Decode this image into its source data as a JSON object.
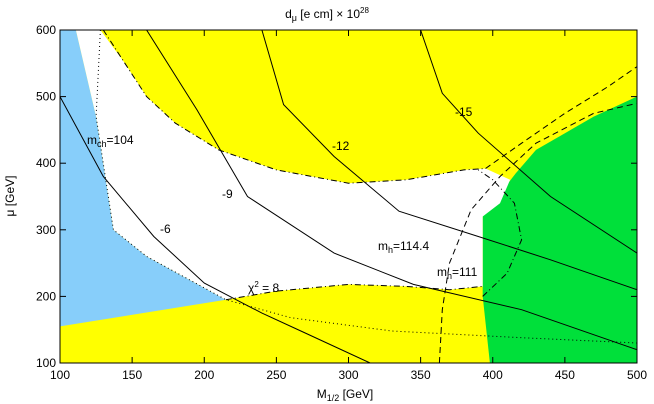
{
  "colors": {
    "excluded_blue": "#87cefa",
    "excluded_yellow": "#ffff00",
    "excluded_green": "#00e03a",
    "allowed_white": "#ffffff",
    "line": "#000000"
  },
  "chart_data": {
    "type": "area",
    "title": {
      "prefix": "d",
      "sub": "μ",
      "suffix": "  [e cm] × 10",
      "sup": "28"
    },
    "xlabel": {
      "prefix": "M",
      "sub": "1/2",
      "suffix": " [GeV]"
    },
    "ylabel": "μ [GeV]",
    "xlim": [
      100,
      500
    ],
    "ylim": [
      100,
      600
    ],
    "x_ticks": [
      100,
      150,
      200,
      250,
      300,
      350,
      400,
      450,
      500
    ],
    "y_ticks": [
      100,
      200,
      300,
      400,
      500,
      600
    ],
    "grid": false,
    "regions": [
      {
        "name": "yellow-region",
        "color": "excluded_yellow",
        "points": [
          [
            100,
            100
          ],
          [
            500,
            100
          ],
          [
            500,
            600
          ],
          [
            100,
            600
          ]
        ]
      },
      {
        "name": "blue-region",
        "color": "excluded_blue",
        "points": [
          [
            100,
            155
          ],
          [
            215,
            195
          ],
          [
            160,
            260
          ],
          [
            137,
            300
          ],
          [
            125,
            470
          ],
          [
            111,
            600
          ],
          [
            100,
            600
          ]
        ]
      },
      {
        "name": "green-region",
        "color": "excluded_green",
        "points": [
          [
            398,
            100
          ],
          [
            500,
            100
          ],
          [
            500,
            500
          ],
          [
            470,
            470
          ],
          [
            450,
            445
          ],
          [
            430,
            420
          ],
          [
            416,
            385
          ],
          [
            400,
            340
          ],
          [
            393,
            320
          ],
          [
            393,
            200
          ],
          [
            398,
            100
          ]
        ]
      },
      {
        "name": "white-region",
        "color": "allowed_white",
        "points": [
          [
            111,
            600
          ],
          [
            128,
            600
          ],
          [
            145,
            550
          ],
          [
            160,
            500
          ],
          [
            180,
            460
          ],
          [
            210,
            420
          ],
          [
            250,
            390
          ],
          [
            300,
            370
          ],
          [
            340,
            375
          ],
          [
            380,
            390
          ],
          [
            395,
            392
          ],
          [
            412,
            375
          ],
          [
            405,
            340
          ],
          [
            393,
            320
          ],
          [
            393,
            215
          ],
          [
            370,
            210
          ],
          [
            340,
            215
          ],
          [
            300,
            218
          ],
          [
            250,
            208
          ],
          [
            215,
            195
          ],
          [
            160,
            260
          ],
          [
            137,
            300
          ],
          [
            125,
            470
          ],
          [
            111,
            600
          ]
        ]
      }
    ],
    "contours": [
      {
        "label": "-6",
        "points": [
          [
            100,
            500
          ],
          [
            130,
            380
          ],
          [
            165,
            290
          ],
          [
            200,
            220
          ],
          [
            240,
            175
          ],
          [
            270,
            145
          ],
          [
            315,
            100
          ]
        ]
      },
      {
        "label": "-9",
        "points": [
          [
            160,
            600
          ],
          [
            195,
            480
          ],
          [
            230,
            350
          ],
          [
            290,
            265
          ],
          [
            345,
            218
          ],
          [
            420,
            180
          ],
          [
            500,
            120
          ]
        ]
      },
      {
        "label": "-12",
        "points": [
          [
            240,
            600
          ],
          [
            255,
            488
          ],
          [
            290,
            410
          ],
          [
            335,
            328
          ],
          [
            390,
            290
          ],
          [
            440,
            255
          ],
          [
            500,
            210
          ]
        ]
      },
      {
        "label": "-15",
        "points": [
          [
            350,
            600
          ],
          [
            365,
            505
          ],
          [
            390,
            445
          ],
          [
            440,
            350
          ],
          [
            500,
            265
          ]
        ]
      }
    ],
    "mh_lines": [
      {
        "label": "m_h=111",
        "style": "dashed",
        "points": [
          [
            363,
            100
          ],
          [
            365,
            180
          ],
          [
            370,
            250
          ],
          [
            385,
            330
          ],
          [
            405,
            380
          ],
          [
            430,
            430
          ],
          [
            470,
            475
          ],
          [
            500,
            490
          ]
        ]
      },
      {
        "label": "m_h=114.4",
        "style": "dashdot",
        "points": [
          [
            393,
            200
          ],
          [
            410,
            235
          ],
          [
            420,
            285
          ],
          [
            415,
            340
          ],
          [
            400,
            375
          ],
          [
            390,
            390
          ]
        ]
      },
      {
        "label": "m_ch=104",
        "style": "dotted",
        "points": [
          [
            128,
            600
          ],
          [
            125,
            470
          ],
          [
            137,
            300
          ],
          [
            160,
            260
          ],
          [
            215,
            195
          ],
          [
            260,
            168
          ],
          [
            330,
            148
          ],
          [
            420,
            138
          ],
          [
            500,
            130
          ]
        ]
      }
    ],
    "chi2_line": {
      "label": "χ²= 8",
      "style": "dashdot",
      "points": [
        [
          130,
          600
        ],
        [
          145,
          550
        ],
        [
          160,
          500
        ],
        [
          180,
          460
        ],
        [
          210,
          420
        ],
        [
          250,
          390
        ],
        [
          300,
          370
        ],
        [
          340,
          375
        ],
        [
          380,
          390
        ],
        [
          395,
          392
        ]
      ]
    },
    "chi2_lower": {
      "style": "dashdot",
      "points": [
        [
          215,
          195
        ],
        [
          250,
          208
        ],
        [
          300,
          218
        ],
        [
          340,
          215
        ],
        [
          370,
          210
        ],
        [
          393,
          215
        ]
      ]
    },
    "mh_dashed_upper": {
      "style": "dashed",
      "points": [
        [
          395,
          392
        ],
        [
          420,
          430
        ],
        [
          450,
          475
        ],
        [
          480,
          515
        ],
        [
          500,
          545
        ]
      ]
    },
    "annotations": {
      "c1": "-6",
      "c2": "-9",
      "c3": "-12",
      "c4": "-15",
      "mch_prefix": "m",
      "mch_sub": "ch",
      "mch_suffix": "=104",
      "mh1_prefix": "m",
      "mh1_sub": "h",
      "mh1_suffix": "=114.4",
      "mh2_prefix": "m",
      "mh2_sub": "h",
      "mh2_suffix": "=111",
      "chi_prefix": "χ",
      "chi_sup": "2",
      "chi_suffix": " = 8"
    }
  }
}
